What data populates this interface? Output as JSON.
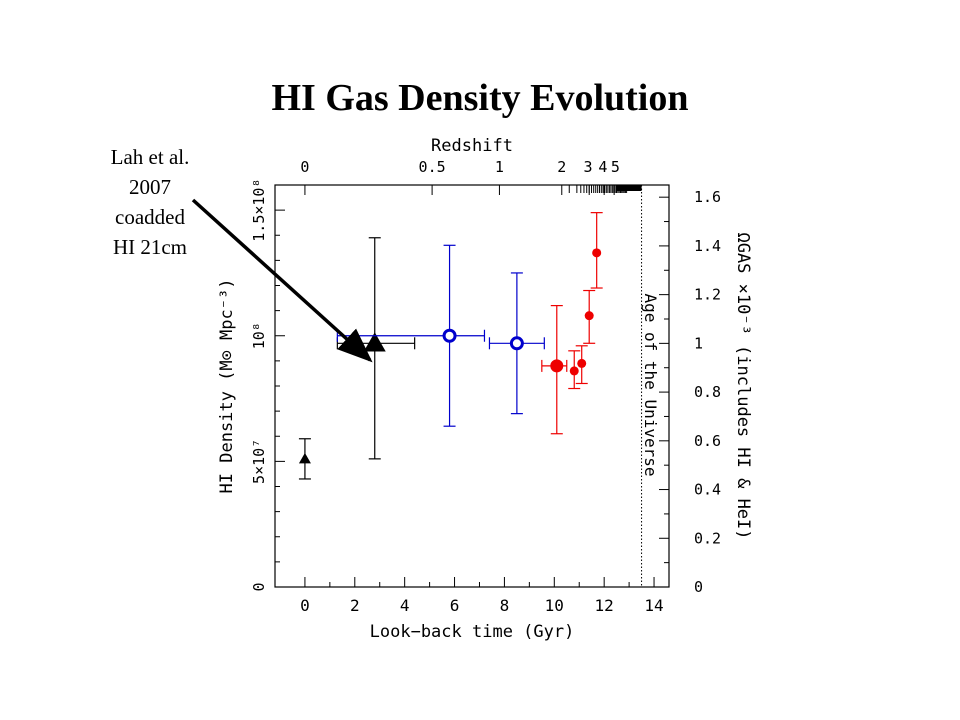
{
  "slide": {
    "title": "HI Gas Density Evolution",
    "annotation_lines": [
      "Lah et al.",
      "2007",
      "coadded",
      "HI 21cm"
    ]
  },
  "chart_data": {
    "type": "scatter",
    "title": "",
    "xlabel": "Look−back time (Gyr)",
    "ylabel": "HI Density (M⊙ Mpc⁻³)",
    "ylabel_right": "ΩGAS ×10⁻³ (includes HI & HeI)",
    "xlabel_top": "Redshift",
    "xlim": [
      -1.2,
      14.6
    ],
    "ylim": [
      0,
      160000000
    ],
    "ylim_right": [
      0,
      1.65
    ],
    "x_ticks": [
      0,
      2,
      4,
      6,
      8,
      10,
      12,
      14
    ],
    "x_tick_labels": [
      "0",
      "2",
      "4",
      "6",
      "8",
      "10",
      "12",
      "14"
    ],
    "y_ticks": [
      0,
      50000000,
      100000000,
      150000000
    ],
    "y_tick_labels": [
      "0",
      "5×10⁷",
      "10⁸",
      "1.5×10⁸"
    ],
    "y_right_ticks": [
      0,
      0.2,
      0.4,
      0.6,
      0.8,
      1.0,
      1.2,
      1.4,
      1.6
    ],
    "y_right_tick_labels": [
      "0",
      "0.2",
      "0.4",
      "0.6",
      "0.8",
      "1",
      "1.2",
      "1.4",
      "1.6"
    ],
    "redshift_ticks": [
      {
        "label": "0",
        "x": 0
      },
      {
        "label": "0.5",
        "x": 5.1
      },
      {
        "label": "1",
        "x": 7.8
      },
      {
        "label": "2",
        "x": 10.3
      },
      {
        "label": "3",
        "x": 11.4
      },
      {
        "label": "4",
        "x": 12.0
      },
      {
        "label": "5",
        "x": 12.4
      }
    ],
    "age_of_universe": {
      "x": 13.5,
      "label": "Age of the Universe"
    },
    "grid": false,
    "series": [
      {
        "marker": "triangle",
        "color": "#000000",
        "size": "small",
        "points": [
          {
            "x": 0.0,
            "y": 51000000,
            "ylow": 43000000,
            "yhigh": 59000000
          }
        ]
      },
      {
        "marker": "triangle",
        "color": "#000000",
        "size": "large",
        "points": [
          {
            "x": 2.8,
            "y": 97000000,
            "xlow": 1.3,
            "xhigh": 4.4,
            "ylow": 51000000,
            "yhigh": 139000000
          }
        ]
      },
      {
        "marker": "open-circle",
        "color": "#0000cc",
        "points": [
          {
            "x": 5.8,
            "y": 100000000,
            "xlow": 1.3,
            "xhigh": 7.2,
            "ylow": 64000000,
            "yhigh": 136000000
          },
          {
            "x": 8.5,
            "y": 97000000,
            "xlow": 7.4,
            "xhigh": 9.6,
            "ylow": 69000000,
            "yhigh": 125000000
          }
        ]
      },
      {
        "marker": "filled-circle",
        "color": "#ee0000",
        "points": [
          {
            "x": 10.1,
            "y": 88000000,
            "xlow": 9.5,
            "xhigh": 10.5,
            "ylow": 61000000,
            "yhigh": 112000000
          },
          {
            "x": 10.8,
            "y": 86000000,
            "ylow": 79000000,
            "yhigh": 94000000
          },
          {
            "x": 11.1,
            "y": 89000000,
            "ylow": 81000000,
            "yhigh": 96000000
          },
          {
            "x": 11.4,
            "y": 108000000,
            "ylow": 97000000,
            "yhigh": 118000000
          },
          {
            "x": 11.7,
            "y": 133000000,
            "ylow": 119000000,
            "yhigh": 149000000
          }
        ]
      }
    ]
  }
}
